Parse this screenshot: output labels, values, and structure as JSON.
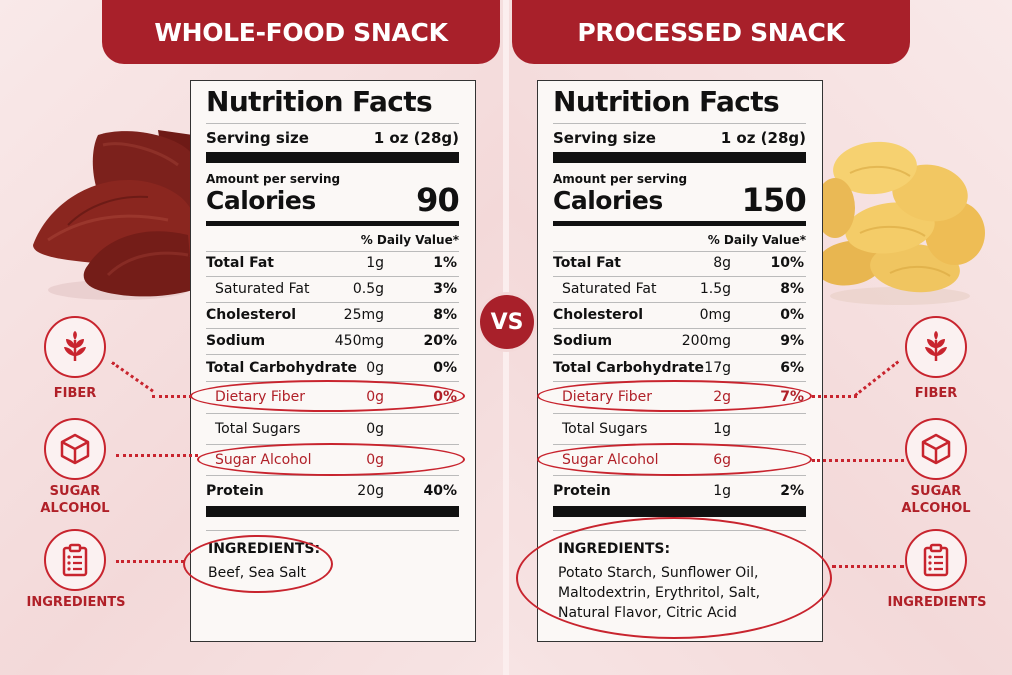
{
  "left": {
    "banner": "WHOLE-FOOD SNACK",
    "title": "Nutrition Facts",
    "serving_label": "Serving size",
    "serving_value": "1 oz (28g)",
    "amount_per": "Amount per serving",
    "calories_label": "Calories",
    "calories_value": "90",
    "dv_header": "% Daily Value*",
    "rows": [
      {
        "label": "Total Fat",
        "amount": "1g",
        "pct": "1%"
      },
      {
        "label": "Saturated Fat",
        "amount": "0.5g",
        "pct": "3%"
      },
      {
        "label": "Cholesterol",
        "amount": "25mg",
        "pct": "8%"
      },
      {
        "label": "Sodium",
        "amount": "450mg",
        "pct": "20%"
      },
      {
        "label": "Total Carbohydrate",
        "amount": "0g",
        "pct": "0%"
      },
      {
        "label": "Dietary Fiber",
        "amount": "0g",
        "pct": "0%"
      },
      {
        "label": "Total Sugars",
        "amount": "0g",
        "pct": ""
      },
      {
        "label": "Sugar Alcohol",
        "amount": "0g",
        "pct": ""
      },
      {
        "label": "Protein",
        "amount": "20g",
        "pct": "40%"
      }
    ],
    "ingredients_heading": "INGREDIENTS:",
    "ingredients_text": "Beef, Sea Salt"
  },
  "right": {
    "banner": "PROCESSED SNACK",
    "title": "Nutrition Facts",
    "serving_label": "Serving size",
    "serving_value": "1 oz (28g)",
    "amount_per": "Amount per serving",
    "calories_label": "Calories",
    "calories_value": "150",
    "dv_header": "% Daily Value*",
    "rows": [
      {
        "label": "Total Fat",
        "amount": "8g",
        "pct": "10%"
      },
      {
        "label": "Saturated Fat",
        "amount": "1.5g",
        "pct": "8%"
      },
      {
        "label": "Cholesterol",
        "amount": "0mg",
        "pct": "0%"
      },
      {
        "label": "Sodium",
        "amount": "200mg",
        "pct": "9%"
      },
      {
        "label": "Total Carbohydrate",
        "amount": "17g",
        "pct": "6%"
      },
      {
        "label": "Dietary Fiber",
        "amount": "2g",
        "pct": "7%"
      },
      {
        "label": "Total Sugars",
        "amount": "1g",
        "pct": ""
      },
      {
        "label": "Sugar Alcohol",
        "amount": "6g",
        "pct": ""
      },
      {
        "label": "Protein",
        "amount": "1g",
        "pct": "2%"
      }
    ],
    "ingredients_heading": "INGREDIENTS:",
    "ingredients_text": "Potato Starch, Sunflower Oil, Maltodextrin, Erythritol, Salt, Natural Flavor, Citric Acid"
  },
  "vs_label": "VS",
  "callouts": {
    "fiber": "FIBER",
    "sugar_alcohol_1": "SUGAR",
    "sugar_alcohol_2": "ALCOHOL",
    "ingredients": "INGREDIENTS"
  },
  "colors": {
    "accent": "#a8202a",
    "highlight": "#c8242e",
    "background": "#f6dede"
  },
  "icons": [
    "plant-sprout-icon",
    "cube-icon",
    "clipboard-checklist-icon"
  ]
}
